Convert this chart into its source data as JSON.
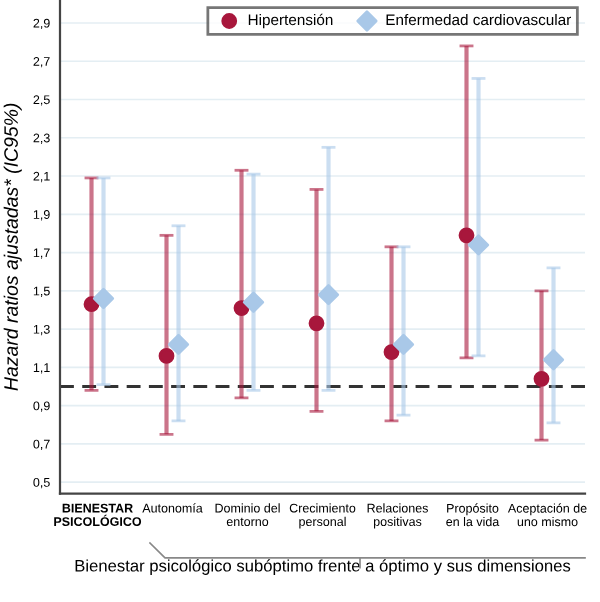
{
  "chart_data": {
    "type": "scatter",
    "ylabel": "Hazard ratios ajustadas* (IC95%)",
    "xlabel": "Bienestar psicológico subóptimo frente a óptimo y sus dimensiones",
    "categories": [
      "BIENESTAR\nPSICOLÓGICO",
      "Autonomía",
      "Dominio del\nentorno",
      "Crecimiento\npersonal",
      "Relaciones\npositivas",
      "Propósito\nen la vida",
      "Aceptación de\nuno mismo"
    ],
    "series": [
      {
        "name": "Hipertensión",
        "color": "#a8173c",
        "marker": "circle",
        "values": [
          1.43,
          1.16,
          1.41,
          1.33,
          1.18,
          1.79,
          1.04
        ],
        "errors": [
          [
            0.98,
            2.09
          ],
          [
            0.75,
            1.79
          ],
          [
            0.94,
            2.13
          ],
          [
            0.87,
            2.03
          ],
          [
            0.82,
            1.73
          ],
          [
            1.15,
            2.78
          ],
          [
            0.72,
            1.5
          ]
        ]
      },
      {
        "name": "Enfermedad cardiovascular",
        "color": "#a9c8e8",
        "marker": "diamond",
        "values": [
          1.46,
          1.22,
          1.44,
          1.48,
          1.22,
          1.74,
          1.14
        ],
        "errors": [
          [
            1.01,
            2.09
          ],
          [
            0.82,
            1.84
          ],
          [
            0.98,
            2.11
          ],
          [
            0.98,
            2.25
          ],
          [
            0.85,
            1.73
          ],
          [
            1.16,
            2.61
          ],
          [
            0.81,
            1.62
          ]
        ]
      }
    ],
    "ylim": [
      0.44,
      3.02
    ],
    "yticks": [
      {
        "value": 0.5,
        "label": "0,5"
      },
      {
        "value": 0.7,
        "label": "0,7"
      },
      {
        "value": 0.9,
        "label": "0,9"
      },
      {
        "value": 1.1,
        "label": "1,1"
      },
      {
        "value": 1.3,
        "label": "1,3"
      },
      {
        "value": 1.5,
        "label": "1,5"
      },
      {
        "value": 1.7,
        "label": "1,7"
      },
      {
        "value": 1.9,
        "label": "1,9"
      },
      {
        "value": 2.1,
        "label": "2,1"
      },
      {
        "value": 2.3,
        "label": "2,3"
      },
      {
        "value": 2.5,
        "label": "2,5"
      },
      {
        "value": 2.7,
        "label": "2,7"
      },
      {
        "value": 2.9,
        "label": "2,9"
      }
    ],
    "ref_lines": [
      {
        "axis": "y",
        "value": 1,
        "color": "#333333",
        "line_style": "dashed"
      }
    ],
    "grid": "y",
    "legend": "top right"
  }
}
